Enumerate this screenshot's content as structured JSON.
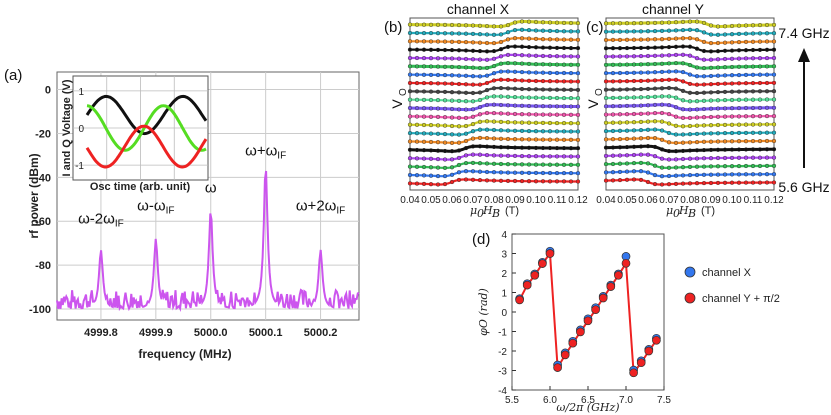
{
  "chart_data": [
    {
      "id": "a",
      "panel_label": "(a)",
      "type": "line",
      "title": "",
      "xlabel": "frequency (MHz)",
      "ylabel": "rf power (dBm)",
      "xlim": [
        4999.72,
        5000.27
      ],
      "ylim": [
        -105,
        8
      ],
      "xticks": [
        4999.8,
        4999.9,
        5000.0,
        5000.1,
        5000.2
      ],
      "xtick_labels": [
        "4999.8",
        "4999.9",
        "5000.0",
        "5000.1",
        "5000.2"
      ],
      "yticks": [
        0,
        -20,
        -40,
        -60,
        -80,
        -100
      ],
      "ytick_labels": [
        "0",
        "-20",
        "-40",
        "-60",
        "-80",
        "-100"
      ],
      "series": [
        {
          "name": "spectrum",
          "color": "#cc55ee"
        }
      ],
      "peaks": [
        {
          "label_main": "ω-2ω",
          "label_sub": "IF",
          "x": 4999.8,
          "value": -73
        },
        {
          "label_main": "ω-ω",
          "label_sub": "IF",
          "x": 4999.9,
          "value": -68
        },
        {
          "label_main": "ω",
          "label_sub": "",
          "x": 5000.0,
          "value": -55
        },
        {
          "label_main": "ω+ω",
          "label_sub": "IF",
          "x": 5000.1,
          "value": -35
        },
        {
          "label_main": "ω+2ω",
          "label_sub": "IF",
          "x": 5000.2,
          "value": -73
        }
      ],
      "noise_floor": -96,
      "inset": {
        "type": "line",
        "xlabel": "Osc time (arb. unit)",
        "ylabel": "I and Q Voltage (V)",
        "ylim": [
          -1.4,
          1.4
        ],
        "yticks": [
          1,
          0,
          -1
        ],
        "ytick_labels": [
          "1",
          "0",
          "-1"
        ],
        "series": [
          {
            "name": "black",
            "color": "#111111",
            "offset": 0.35,
            "amplitude": 0.5,
            "phase": 0.0
          },
          {
            "name": "green",
            "color": "#55dd22",
            "offset": 0.0,
            "amplitude": 0.6,
            "phase": 1.6
          },
          {
            "name": "red",
            "color": "#ee2222",
            "offset": -0.5,
            "amplitude": 0.55,
            "phase": 3.2
          }
        ]
      }
    },
    {
      "id": "b",
      "panel_label": "(b)",
      "type": "line",
      "title": "channel X",
      "xlabel": "μ0HB (T)",
      "xlabel_main": "μ",
      "xlabel_sub0": "0",
      "xlabel_H": "H",
      "xlabel_subB": "B",
      "xlabel_unit": "(T)",
      "ylabel": "V",
      "ylabel_sub": "O",
      "xlim": [
        0.04,
        0.12
      ],
      "xtick_labels": [
        "0.04",
        "0.05",
        "0.06",
        "0.07",
        "0.08",
        "0.09",
        "0.10",
        "0.11",
        "0.12"
      ],
      "trace_count": 20,
      "resonance_start": 0.06,
      "resonance_end": 0.088
    },
    {
      "id": "c",
      "panel_label": "(c)",
      "type": "line",
      "title": "channel Y",
      "xlabel": "μ0HB (T)",
      "ylabel": "V",
      "ylabel_sub": "O",
      "xlim": [
        0.04,
        0.12
      ],
      "xtick_labels": [
        "0.04",
        "0.05",
        "0.06",
        "0.07",
        "0.08",
        "0.09",
        "0.10",
        "0.11",
        "0.12"
      ],
      "trace_count": 20,
      "resonance_start": 0.06,
      "resonance_end": 0.088,
      "freq_top": "7.4 GHz",
      "freq_bottom": "5.6 GHz"
    },
    {
      "id": "d",
      "panel_label": "(d)",
      "type": "scatter",
      "xlabel": "ω/2π (GHz)",
      "ylabel": "φO (rad)",
      "xlim": [
        5.5,
        7.5
      ],
      "ylim": [
        -4,
        4
      ],
      "xticks": [
        5.5,
        6.0,
        6.5,
        7.0,
        7.5
      ],
      "xtick_labels": [
        "5.5",
        "6.0",
        "6.5",
        "7.0",
        "7.5"
      ],
      "yticks": [
        4,
        3,
        2,
        1,
        0,
        -1,
        -2,
        -3,
        -4
      ],
      "ytick_labels": [
        "4",
        "3",
        "2",
        "1",
        "0",
        "-1",
        "-2",
        "-3",
        "-4"
      ],
      "x": [
        5.6,
        5.7,
        5.8,
        5.9,
        6.0,
        6.1,
        6.2,
        6.3,
        6.4,
        6.5,
        6.6,
        6.7,
        6.8,
        6.9,
        7.0,
        7.1,
        7.2,
        7.3,
        7.4
      ],
      "series": [
        {
          "name": "channel X",
          "color": "#3377ee",
          "values": [
            0.68,
            1.45,
            1.95,
            2.55,
            3.12,
            -2.72,
            -2.1,
            -1.5,
            -0.92,
            -0.35,
            0.22,
            0.8,
            1.38,
            1.95,
            2.85,
            -2.98,
            -2.5,
            -1.92,
            -1.35
          ]
        },
        {
          "name": "channel Y + π/2",
          "color": "#ee2222",
          "values": [
            0.62,
            1.38,
            1.88,
            2.48,
            3.0,
            -2.85,
            -2.2,
            -1.6,
            -1.02,
            -0.45,
            0.12,
            0.72,
            1.3,
            1.88,
            2.5,
            -3.12,
            -2.6,
            -2.0,
            -1.45
          ]
        }
      ],
      "fit_color": "#ee2222"
    }
  ]
}
